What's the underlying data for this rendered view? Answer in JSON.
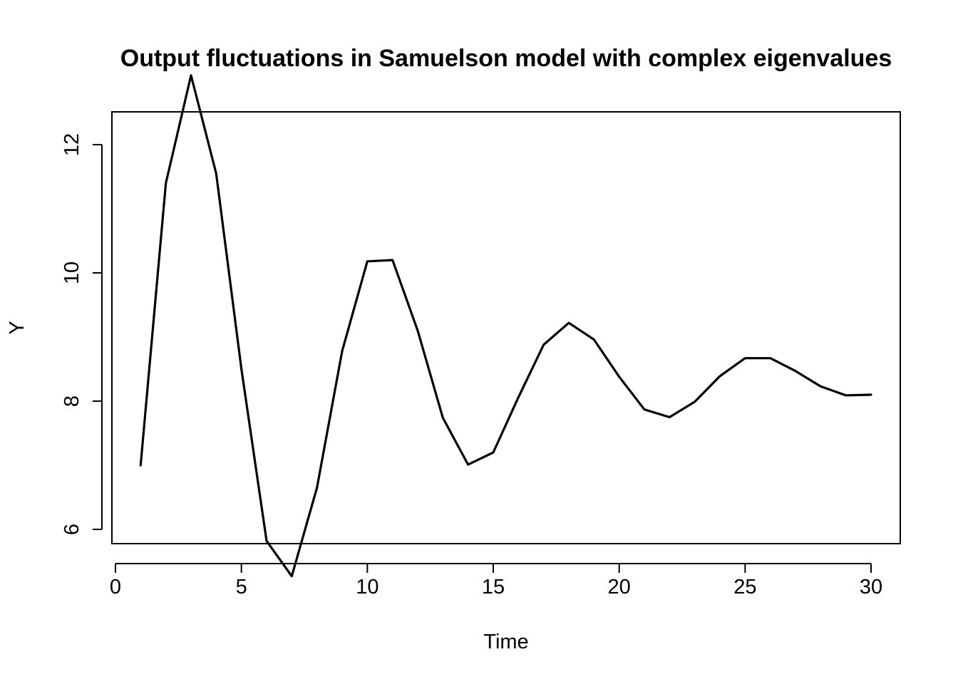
{
  "chart_data": {
    "type": "line",
    "title": "Output fluctuations in Samuelson model with complex eigenvalues",
    "xlabel": "Time",
    "ylabel": "Y",
    "xlim": [
      0,
      30
    ],
    "ylim": [
      5,
      13
    ],
    "x_ticks": [
      0,
      5,
      10,
      15,
      20,
      25,
      30
    ],
    "y_ticks": [
      6,
      8,
      10,
      12
    ],
    "x_tick_labels": [
      "0",
      "5",
      "10",
      "15",
      "20",
      "25",
      "30"
    ],
    "y_tick_labels": [
      "6",
      "8",
      "10",
      "12"
    ],
    "grid": false,
    "line_color": "#000000",
    "series": [
      {
        "x": [
          1,
          2,
          3,
          4,
          5,
          6,
          7,
          8,
          9,
          10,
          11,
          12,
          13,
          14,
          15,
          16,
          17,
          18,
          19,
          20,
          21,
          22,
          23,
          24,
          25,
          26,
          27,
          28,
          29,
          30
        ],
        "values": [
          7.0,
          11.4,
          13.08,
          11.55,
          8.5,
          5.82,
          5.27,
          6.65,
          8.78,
          10.18,
          10.2,
          9.1,
          7.74,
          7.01,
          7.2,
          8.06,
          8.88,
          9.22,
          8.96,
          8.38,
          7.87,
          7.75,
          7.99,
          8.39,
          8.67,
          8.67,
          8.47,
          8.23,
          8.09,
          8.1
        ]
      }
    ]
  }
}
